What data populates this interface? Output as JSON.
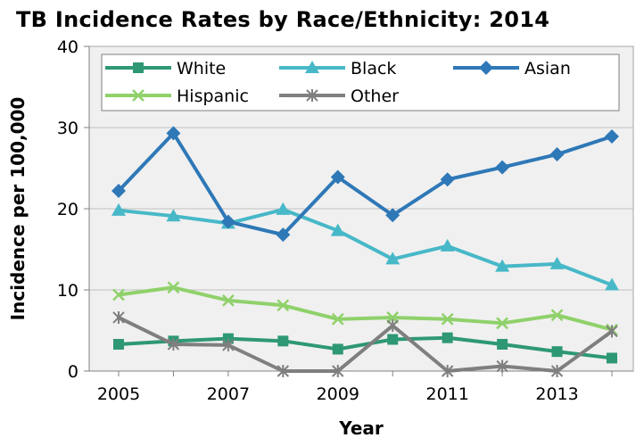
{
  "chart_data": {
    "type": "line",
    "title": "TB Incidence Rates by Race/Ethnicity: 2014",
    "xlabel": "Year",
    "ylabel": "Incidence per 100,000",
    "x": [
      2005,
      2006,
      2007,
      2008,
      2009,
      2010,
      2011,
      2012,
      2013,
      2014
    ],
    "x_tick_labels": [
      "2005",
      "2007",
      "2009",
      "2011",
      "2013"
    ],
    "ylim": [
      0,
      40
    ],
    "y_ticks": [
      0,
      10,
      20,
      30,
      40
    ],
    "grid": true,
    "legend_position": "top",
    "series": [
      {
        "name": "White",
        "color": "#2E9874",
        "marker": "square",
        "values": [
          3.3,
          3.7,
          4.0,
          3.7,
          2.7,
          3.9,
          4.1,
          3.3,
          2.4,
          1.6
        ]
      },
      {
        "name": "Black",
        "color": "#47B8C8",
        "marker": "triangle",
        "values": [
          19.8,
          19.1,
          18.2,
          19.9,
          17.3,
          13.8,
          15.4,
          12.9,
          13.2,
          10.6
        ]
      },
      {
        "name": "Asian",
        "color": "#2E78B7",
        "marker": "diamond",
        "values": [
          22.2,
          29.3,
          18.4,
          16.8,
          23.9,
          19.2,
          23.6,
          25.1,
          26.7,
          28.9
        ]
      },
      {
        "name": "Hispanic",
        "color": "#8FD16A",
        "marker": "x",
        "values": [
          9.4,
          10.3,
          8.7,
          8.1,
          6.4,
          6.6,
          6.4,
          5.9,
          6.9,
          5.1
        ]
      },
      {
        "name": "Other",
        "color": "#7F7F7F",
        "marker": "star",
        "values": [
          6.6,
          3.3,
          3.2,
          0.0,
          0.0,
          5.6,
          0.0,
          0.6,
          0.0,
          4.9
        ]
      }
    ]
  }
}
